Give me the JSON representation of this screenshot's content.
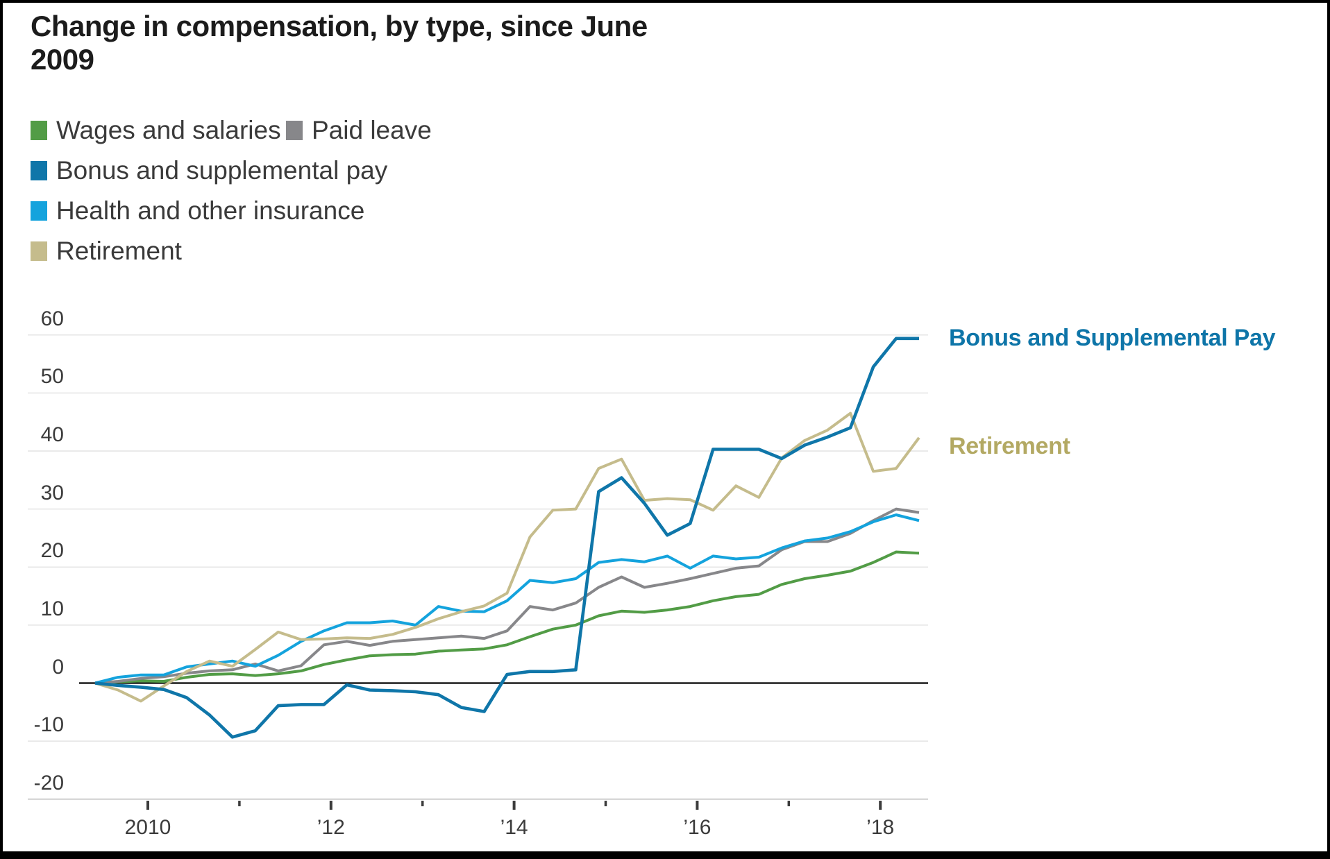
{
  "title": {
    "line1": "Change in compensation, by type, since June",
    "line2": "2009"
  },
  "legend": [
    {
      "label": "Wages and salaries",
      "color": "#529c46"
    },
    {
      "label": "Paid leave",
      "color": "#87878a"
    },
    {
      "label": "Bonus and supplemental pay",
      "color": "#0f76a9"
    },
    {
      "label": "Health and other insurance",
      "color": "#14a3dd"
    },
    {
      "label": "Retirement",
      "color": "#c5bc8c"
    }
  ],
  "annotations": [
    {
      "text": "Bonus and Supplemental Pay",
      "color": "#0e75a8"
    },
    {
      "text": "Retirement",
      "color": "#b3a963"
    }
  ],
  "chart_data": {
    "type": "line",
    "title": "Change in compensation, by type, since June 2009",
    "x_unit": "quarterly",
    "x_start_year": 2009.5,
    "x_step_years": 0.25,
    "ylim": [
      -20,
      60
    ],
    "y_ticks": [
      60,
      50,
      40,
      30,
      20,
      10,
      0,
      -10,
      -20
    ],
    "x_ticks": [
      {
        "year": 2010,
        "label": "2010",
        "major": true
      },
      {
        "year": 2011,
        "label": "",
        "major": false
      },
      {
        "year": 2012,
        "label": "’12",
        "major": true
      },
      {
        "year": 2013,
        "label": "",
        "major": false
      },
      {
        "year": 2014,
        "label": "’14",
        "major": true
      },
      {
        "year": 2015,
        "label": "",
        "major": false
      },
      {
        "year": 2016,
        "label": "’16",
        "major": true
      },
      {
        "year": 2017,
        "label": "",
        "major": false
      },
      {
        "year": 2018,
        "label": "’18",
        "major": true
      }
    ],
    "grid": true,
    "legend_position": "top-left",
    "series": [
      {
        "name": "Wages and salaries",
        "color": "#529c46",
        "width": 4,
        "values": [
          0,
          0.2,
          0.4,
          0.3,
          1.0,
          1.5,
          1.6,
          1.3,
          1.6,
          2.1,
          3.2,
          4.0,
          4.7,
          4.9,
          5.0,
          5.5,
          5.7,
          5.9,
          6.6,
          8.0,
          9.3,
          10.0,
          11.6,
          12.4,
          12.2,
          12.6,
          13.2,
          14.2,
          14.9,
          15.3,
          17.0,
          18.0,
          18.6,
          19.3,
          20.8,
          22.6,
          22.4
        ]
      },
      {
        "name": "Paid leave",
        "color": "#87878a",
        "width": 4,
        "values": [
          0,
          0.3,
          0.8,
          1.1,
          1.7,
          2.1,
          2.3,
          3.3,
          2.1,
          3.0,
          6.6,
          7.2,
          6.5,
          7.2,
          7.5,
          7.8,
          8.1,
          7.7,
          9.0,
          13.2,
          12.6,
          13.8,
          16.5,
          18.3,
          16.5,
          17.2,
          18.0,
          18.9,
          19.8,
          20.2,
          23.0,
          24.4,
          24.4,
          25.8,
          28.0,
          30.0,
          29.4
        ]
      },
      {
        "name": "Bonus and supplemental pay",
        "color": "#0f76a9",
        "width": 4.6,
        "values": [
          0,
          -0.4,
          -0.7,
          -1.1,
          -2.5,
          -5.5,
          -9.3,
          -8.2,
          -3.9,
          -3.7,
          -3.7,
          -0.3,
          -1.2,
          -1.3,
          -1.5,
          -2.0,
          -4.2,
          -4.9,
          1.5,
          2.0,
          2.0,
          2.3,
          33.0,
          35.4,
          31.0,
          25.5,
          27.5,
          40.3,
          40.3,
          40.3,
          38.7,
          41.0,
          42.4,
          44.0,
          54.5,
          59.4,
          59.4
        ]
      },
      {
        "name": "Health and other insurance",
        "color": "#14a3dd",
        "width": 4,
        "values": [
          0,
          1.0,
          1.4,
          1.4,
          2.8,
          3.3,
          3.8,
          2.9,
          4.8,
          7.2,
          9.0,
          10.4,
          10.4,
          10.7,
          10.0,
          13.2,
          12.4,
          12.3,
          14.2,
          17.7,
          17.3,
          18.0,
          20.8,
          21.3,
          20.9,
          21.9,
          19.8,
          21.9,
          21.4,
          21.7,
          23.3,
          24.5,
          25.0,
          26.1,
          27.8,
          29.0,
          28.0
        ]
      },
      {
        "name": "Retirement",
        "color": "#c5bc8c",
        "width": 4,
        "values": [
          0,
          -1.2,
          -3.1,
          -0.5,
          2.0,
          3.8,
          2.9,
          5.8,
          8.8,
          7.5,
          7.6,
          7.8,
          7.7,
          8.4,
          9.6,
          11.1,
          12.3,
          13.3,
          15.5,
          25.2,
          29.8,
          30.0,
          37.0,
          38.6,
          31.5,
          31.8,
          31.6,
          29.8,
          34.0,
          32.0,
          38.8,
          41.8,
          43.6,
          46.5,
          36.5,
          37.0,
          42.3
        ]
      }
    ],
    "draw_order": [
      0,
      1,
      3,
      4,
      2
    ]
  }
}
